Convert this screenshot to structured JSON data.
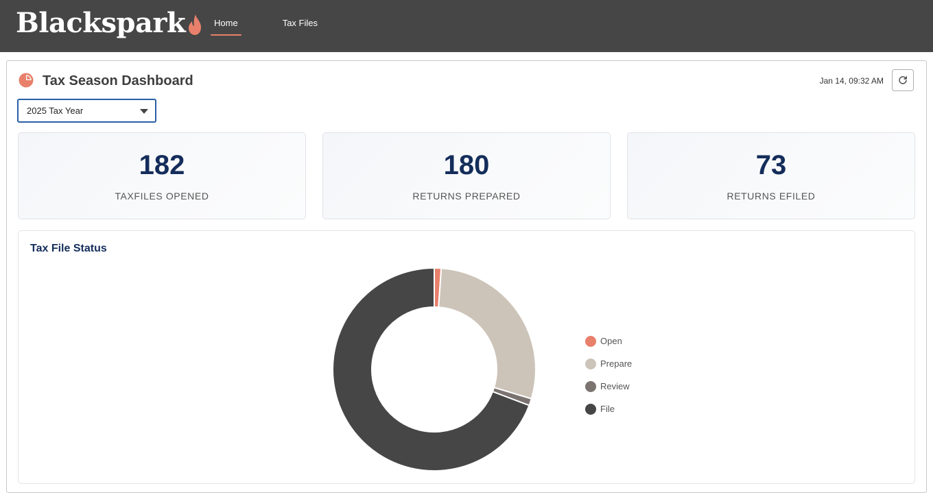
{
  "app": {
    "brand": "Blackspark",
    "nav": [
      {
        "label": "Home",
        "active": true
      },
      {
        "label": "Tax Files",
        "active": false
      }
    ],
    "colors": {
      "topbar": "#464646",
      "accent": "#e8806b",
      "navy": "#142d5a"
    }
  },
  "header": {
    "title": "Tax Season Dashboard",
    "icon": "pie-chart-icon",
    "timestamp": "Jan 14, 09:32 AM",
    "refresh_icon": "refresh-icon"
  },
  "year_select": {
    "value": "2025 Tax Year"
  },
  "stats": [
    {
      "value": "182",
      "label": "TAXFILES OPENED"
    },
    {
      "value": "180",
      "label": "RETURNS PREPARED"
    },
    {
      "value": "73",
      "label": "RETURNS EFILED"
    }
  ],
  "status_chart": {
    "title": "Tax File Status",
    "chart_data": {
      "type": "pie",
      "variant": "donut",
      "categories": [
        "Open",
        "Prepare",
        "Review",
        "File"
      ],
      "values": [
        2,
        52,
        2,
        126
      ],
      "colors": [
        "#e8806b",
        "#cdc4b9",
        "#7a7370",
        "#464646"
      ],
      "legend": [
        "Open",
        "Prepare",
        "Review",
        "File"
      ],
      "legend_position": "right"
    }
  }
}
